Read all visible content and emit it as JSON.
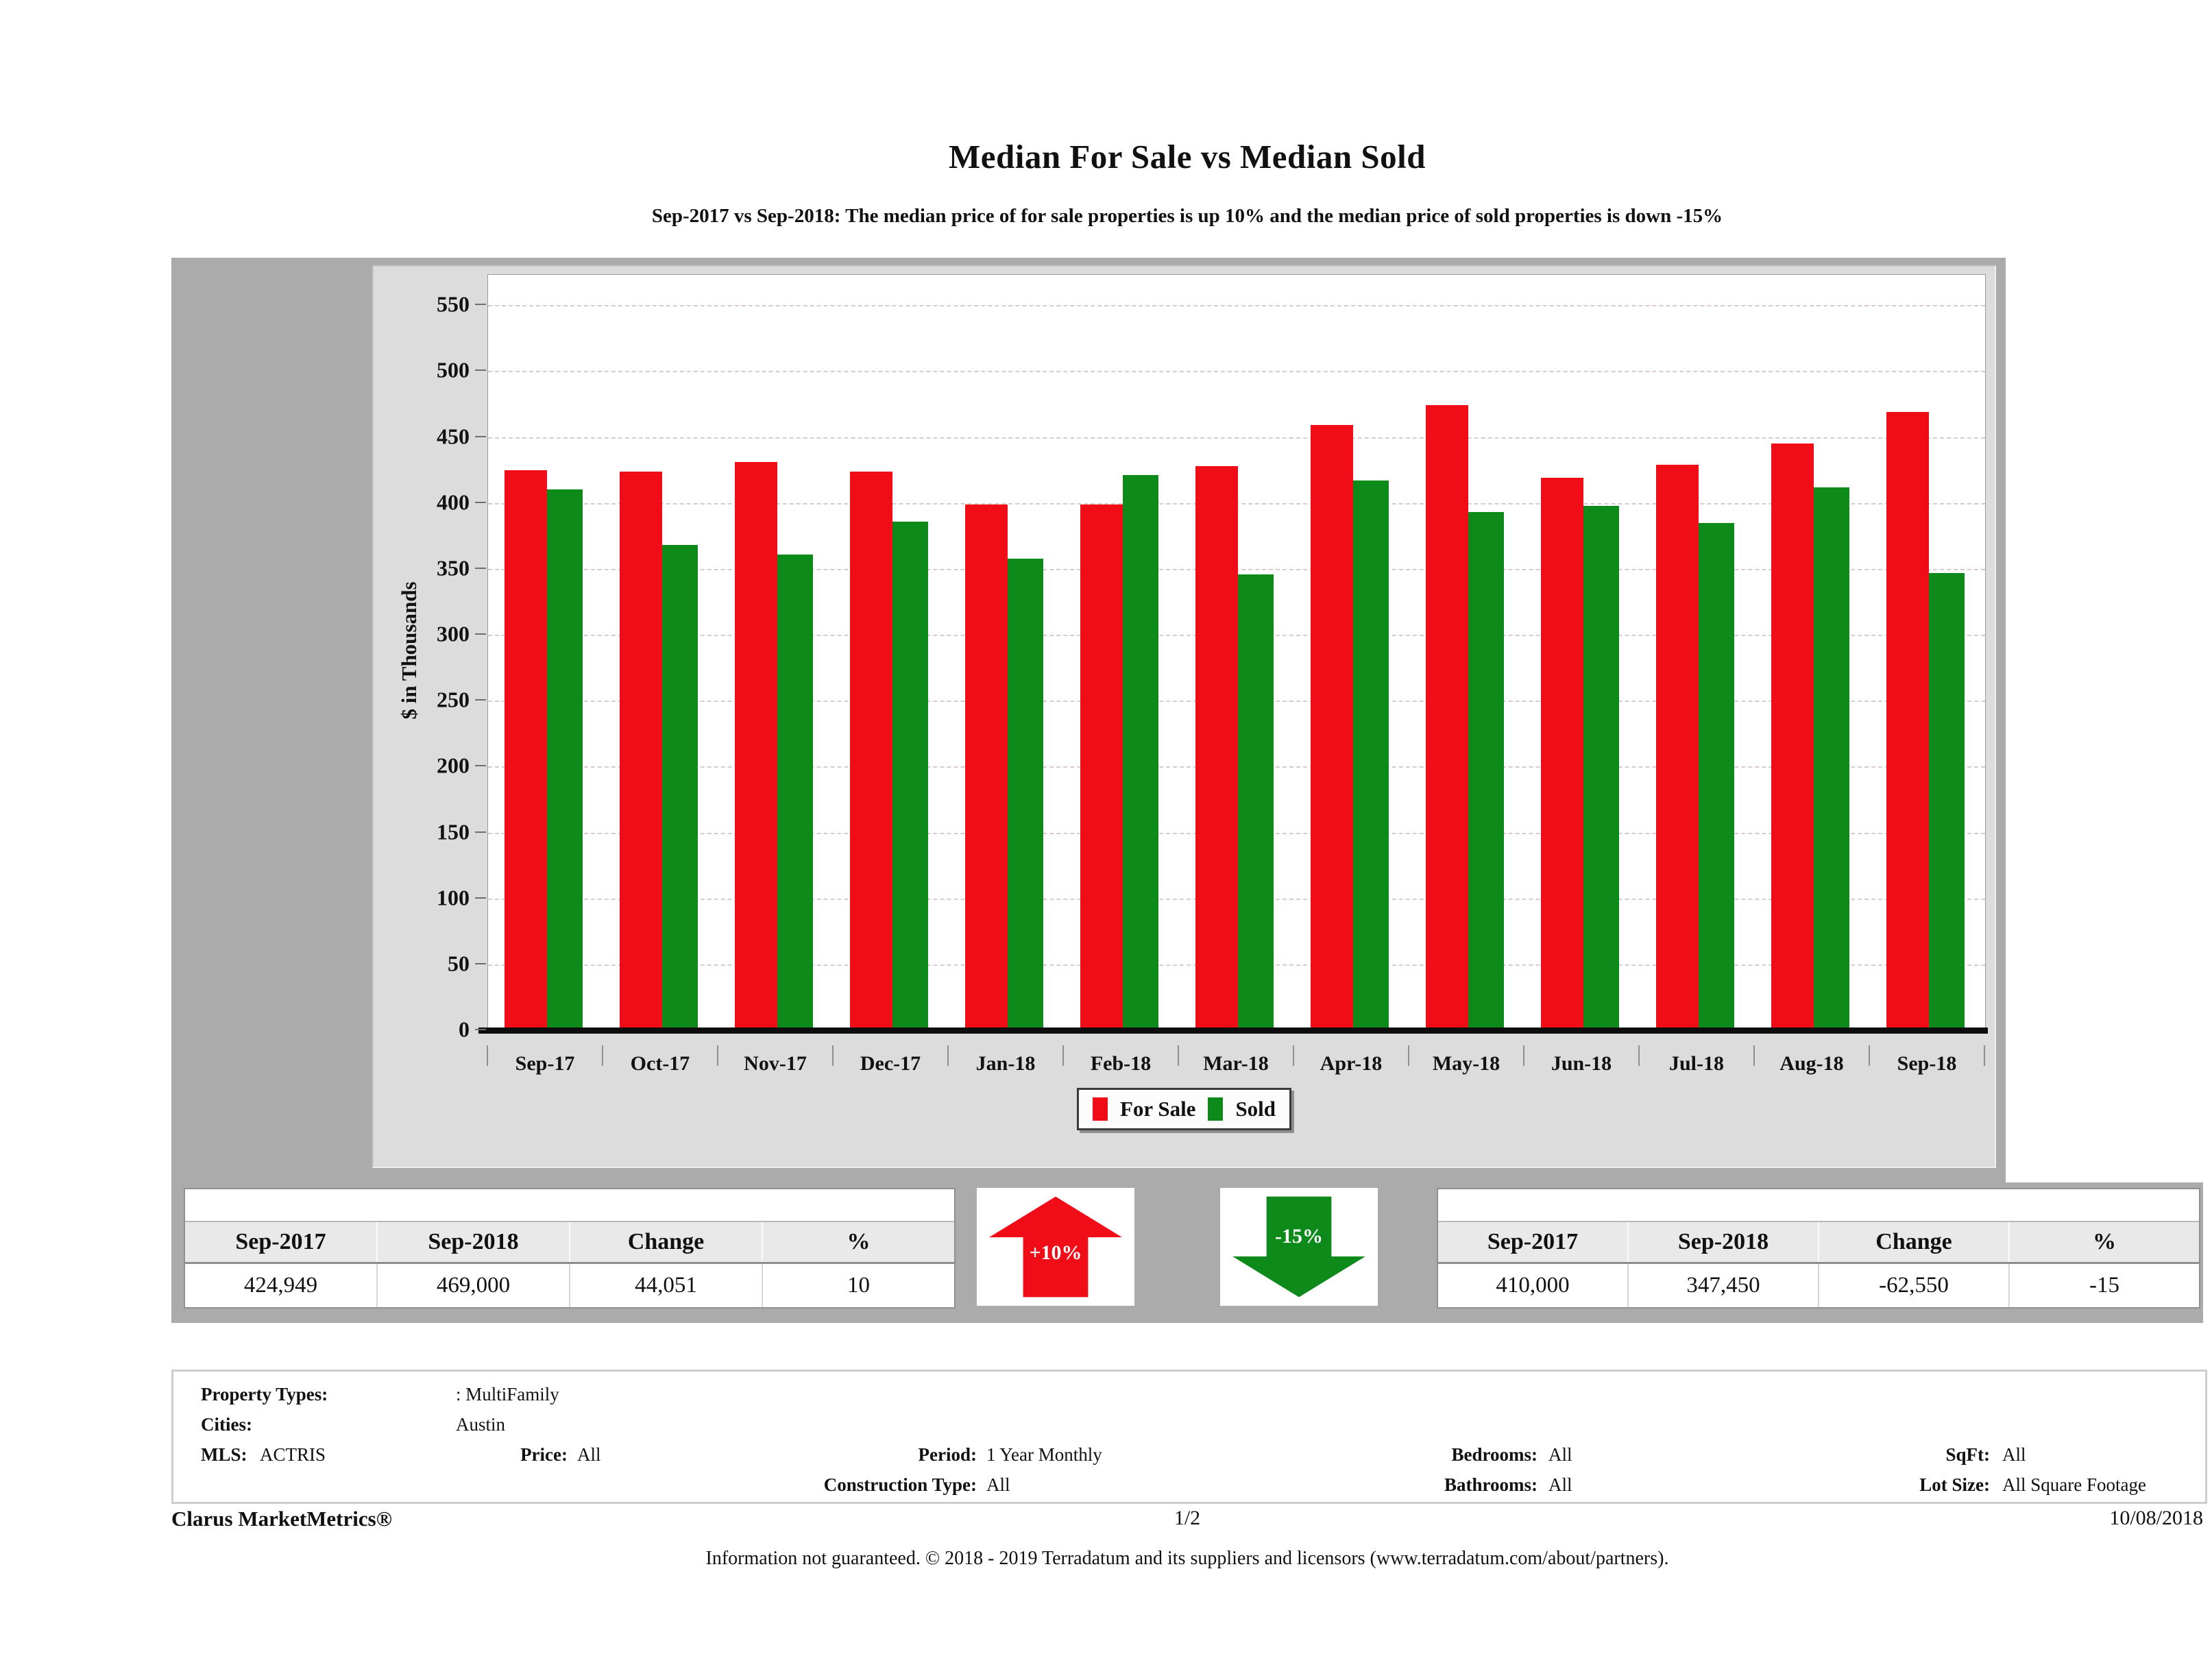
{
  "title": "Median For Sale vs Median Sold",
  "subtitle": "Sep-2017 vs Sep-2018: The median price of for sale properties is up 10% and the median price of sold properties is down -15%",
  "chart_data": {
    "type": "bar",
    "title": "Median For Sale vs Median Sold",
    "categories": [
      "Sep-17",
      "Oct-17",
      "Nov-17",
      "Dec-17",
      "Jan-18",
      "Feb-18",
      "Mar-18",
      "Apr-18",
      "May-18",
      "Jun-18",
      "Jul-18",
      "Aug-18",
      "Sep-18"
    ],
    "series": [
      {
        "name": "For Sale",
        "color": "#f00d18",
        "values": [
          425,
          424,
          431,
          424,
          399,
          399,
          428,
          459,
          474,
          419,
          429,
          445,
          469
        ]
      },
      {
        "name": "Sold",
        "color": "#0e8a1a",
        "values": [
          410,
          368,
          361,
          386,
          358,
          421,
          346,
          417,
          393,
          398,
          385,
          412,
          347
        ]
      }
    ],
    "xlabel": "",
    "ylabel": "$ in Thousands",
    "ylim": [
      0,
      573
    ],
    "yticks": [
      0,
      50,
      100,
      150,
      200,
      250,
      300,
      350,
      400,
      450,
      500,
      550
    ],
    "grid": true,
    "legend_position": "bottom"
  },
  "summary_left": {
    "headers": [
      "Sep-2017",
      "Sep-2018",
      "Change",
      "%"
    ],
    "values": [
      "424,949",
      "469,000",
      "44,051",
      "10"
    ]
  },
  "summary_right": {
    "headers": [
      "Sep-2017",
      "Sep-2018",
      "Change",
      "%"
    ],
    "values": [
      "410,000",
      "347,450",
      "-62,550",
      "-15"
    ]
  },
  "arrow_up": {
    "label": "+10%",
    "color": "#f00d18"
  },
  "arrow_down": {
    "label": "-15%",
    "color": "#0e8a1a"
  },
  "filters": {
    "property_types_label": "Property Types:",
    "property_types_value": ": MultiFamily",
    "cities_label": "Cities:",
    "cities_value": "Austin",
    "mls_label": "MLS:",
    "mls_value": "ACTRIS",
    "price_label": "Price:",
    "price_value": "All",
    "period_label": "Period:",
    "period_value": "1 Year Monthly",
    "construction_label": "Construction Type:",
    "construction_value": "All",
    "bedrooms_label": "Bedrooms:",
    "bedrooms_value": "All",
    "bathrooms_label": "Bathrooms:",
    "bathrooms_value": "All",
    "sqft_label": "SqFt:",
    "sqft_value": "All",
    "lot_label": "Lot Size:",
    "lot_value": "All Square Footage"
  },
  "footer": {
    "brand": "Clarus MarketMetrics®",
    "page": "1/2",
    "date": "10/08/2018",
    "disclaimer": "Information not guaranteed. © 2018 - 2019 Terradatum and its suppliers and licensors (www.terradatum.com/about/partners)."
  }
}
